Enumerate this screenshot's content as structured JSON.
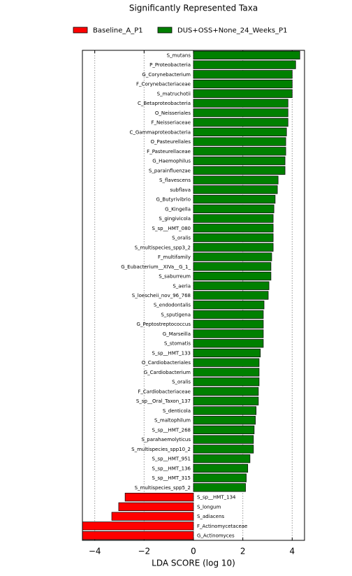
{
  "chart_data": {
    "type": "barh",
    "title": "Significantly Represented Taxa",
    "xlabel": "LDA SCORE (log 10)",
    "categories": [
      "S_mutans",
      "P_Proteobacteria",
      "G_Corynebacterium",
      "F_Corynebacteriaceae",
      "S_matruchotii",
      "C_Betaproteobacteria",
      "O_Neisseriales",
      "F_Neisseriaceae",
      "C_Gammaproteobacteria",
      "O_Pasteurellales",
      "F_Pasteurellaceae",
      "G_Haemophilus",
      "S_parainfluenzae",
      "S_flavescens",
      "subflava",
      "G_Butyrivibrio",
      "G_Kingella",
      "S_gingivicola",
      "S_sp__HMT_080",
      "S_oralis",
      "S_multispecies_spp3_2",
      "F_multifamily",
      "G_Eubacterium__XIVa__G_1_",
      "S_saburreum",
      "S_aeria",
      "S_loescheii_nov_96_768",
      "S_endodontalis",
      "S_sputigena",
      "G_Peptostreptococcus",
      "G_Marseilla",
      "S_stomatis",
      "S_sp__HMT_133",
      "O_Cardiobacteriales",
      "G_Cardiobacterium",
      "S_oralis",
      "F_Cardiobacteriaceae",
      "S_sp__Oral_Taxon_137",
      "S_denticola",
      "S_maltophilum",
      "S_sp__HMT_268",
      "S_parahaemolyticus",
      "S_multispecies_spp10_2",
      "S_sp__HMT_951",
      "S_sp__HMT_136",
      "S_sp__HMT_315",
      "S_multispecies_spp5_2",
      "S_sp__HMT_134",
      "S_longum",
      "S_adiacens",
      "F_Actinomycetaceae",
      "G_Actinomyces"
    ],
    "series": [
      {
        "name": "Baseline_A_P1",
        "color": "#ff0000",
        "values": [
          null,
          null,
          null,
          null,
          null,
          null,
          null,
          null,
          null,
          null,
          null,
          null,
          null,
          null,
          null,
          null,
          null,
          null,
          null,
          null,
          null,
          null,
          null,
          null,
          null,
          null,
          null,
          null,
          null,
          null,
          null,
          null,
          null,
          null,
          null,
          null,
          null,
          null,
          null,
          null,
          null,
          null,
          null,
          null,
          null,
          null,
          -2.77,
          -3.03,
          -3.31,
          -4.5,
          -4.5
        ]
      },
      {
        "name": "DUS+OSS+None_24_Weeks_P1",
        "color": "#008000",
        "values": [
          4.31,
          4.14,
          4.0,
          4.0,
          4.0,
          3.83,
          3.83,
          3.83,
          3.77,
          3.74,
          3.74,
          3.71,
          3.71,
          3.43,
          3.4,
          3.31,
          3.26,
          3.23,
          3.23,
          3.23,
          3.23,
          3.17,
          3.14,
          3.14,
          3.06,
          3.03,
          2.86,
          2.83,
          2.83,
          2.83,
          2.83,
          2.71,
          2.66,
          2.66,
          2.66,
          2.63,
          2.63,
          2.54,
          2.51,
          2.46,
          2.43,
          2.43,
          2.29,
          2.2,
          2.14,
          2.11,
          null,
          null,
          null,
          null,
          null
        ]
      }
    ],
    "xlim": [
      -4.5,
      4.5
    ],
    "xticks": [
      {
        "value": -4,
        "label": "−4"
      },
      {
        "value": -2,
        "label": "−2"
      },
      0,
      2,
      4
    ],
    "grid": true
  }
}
